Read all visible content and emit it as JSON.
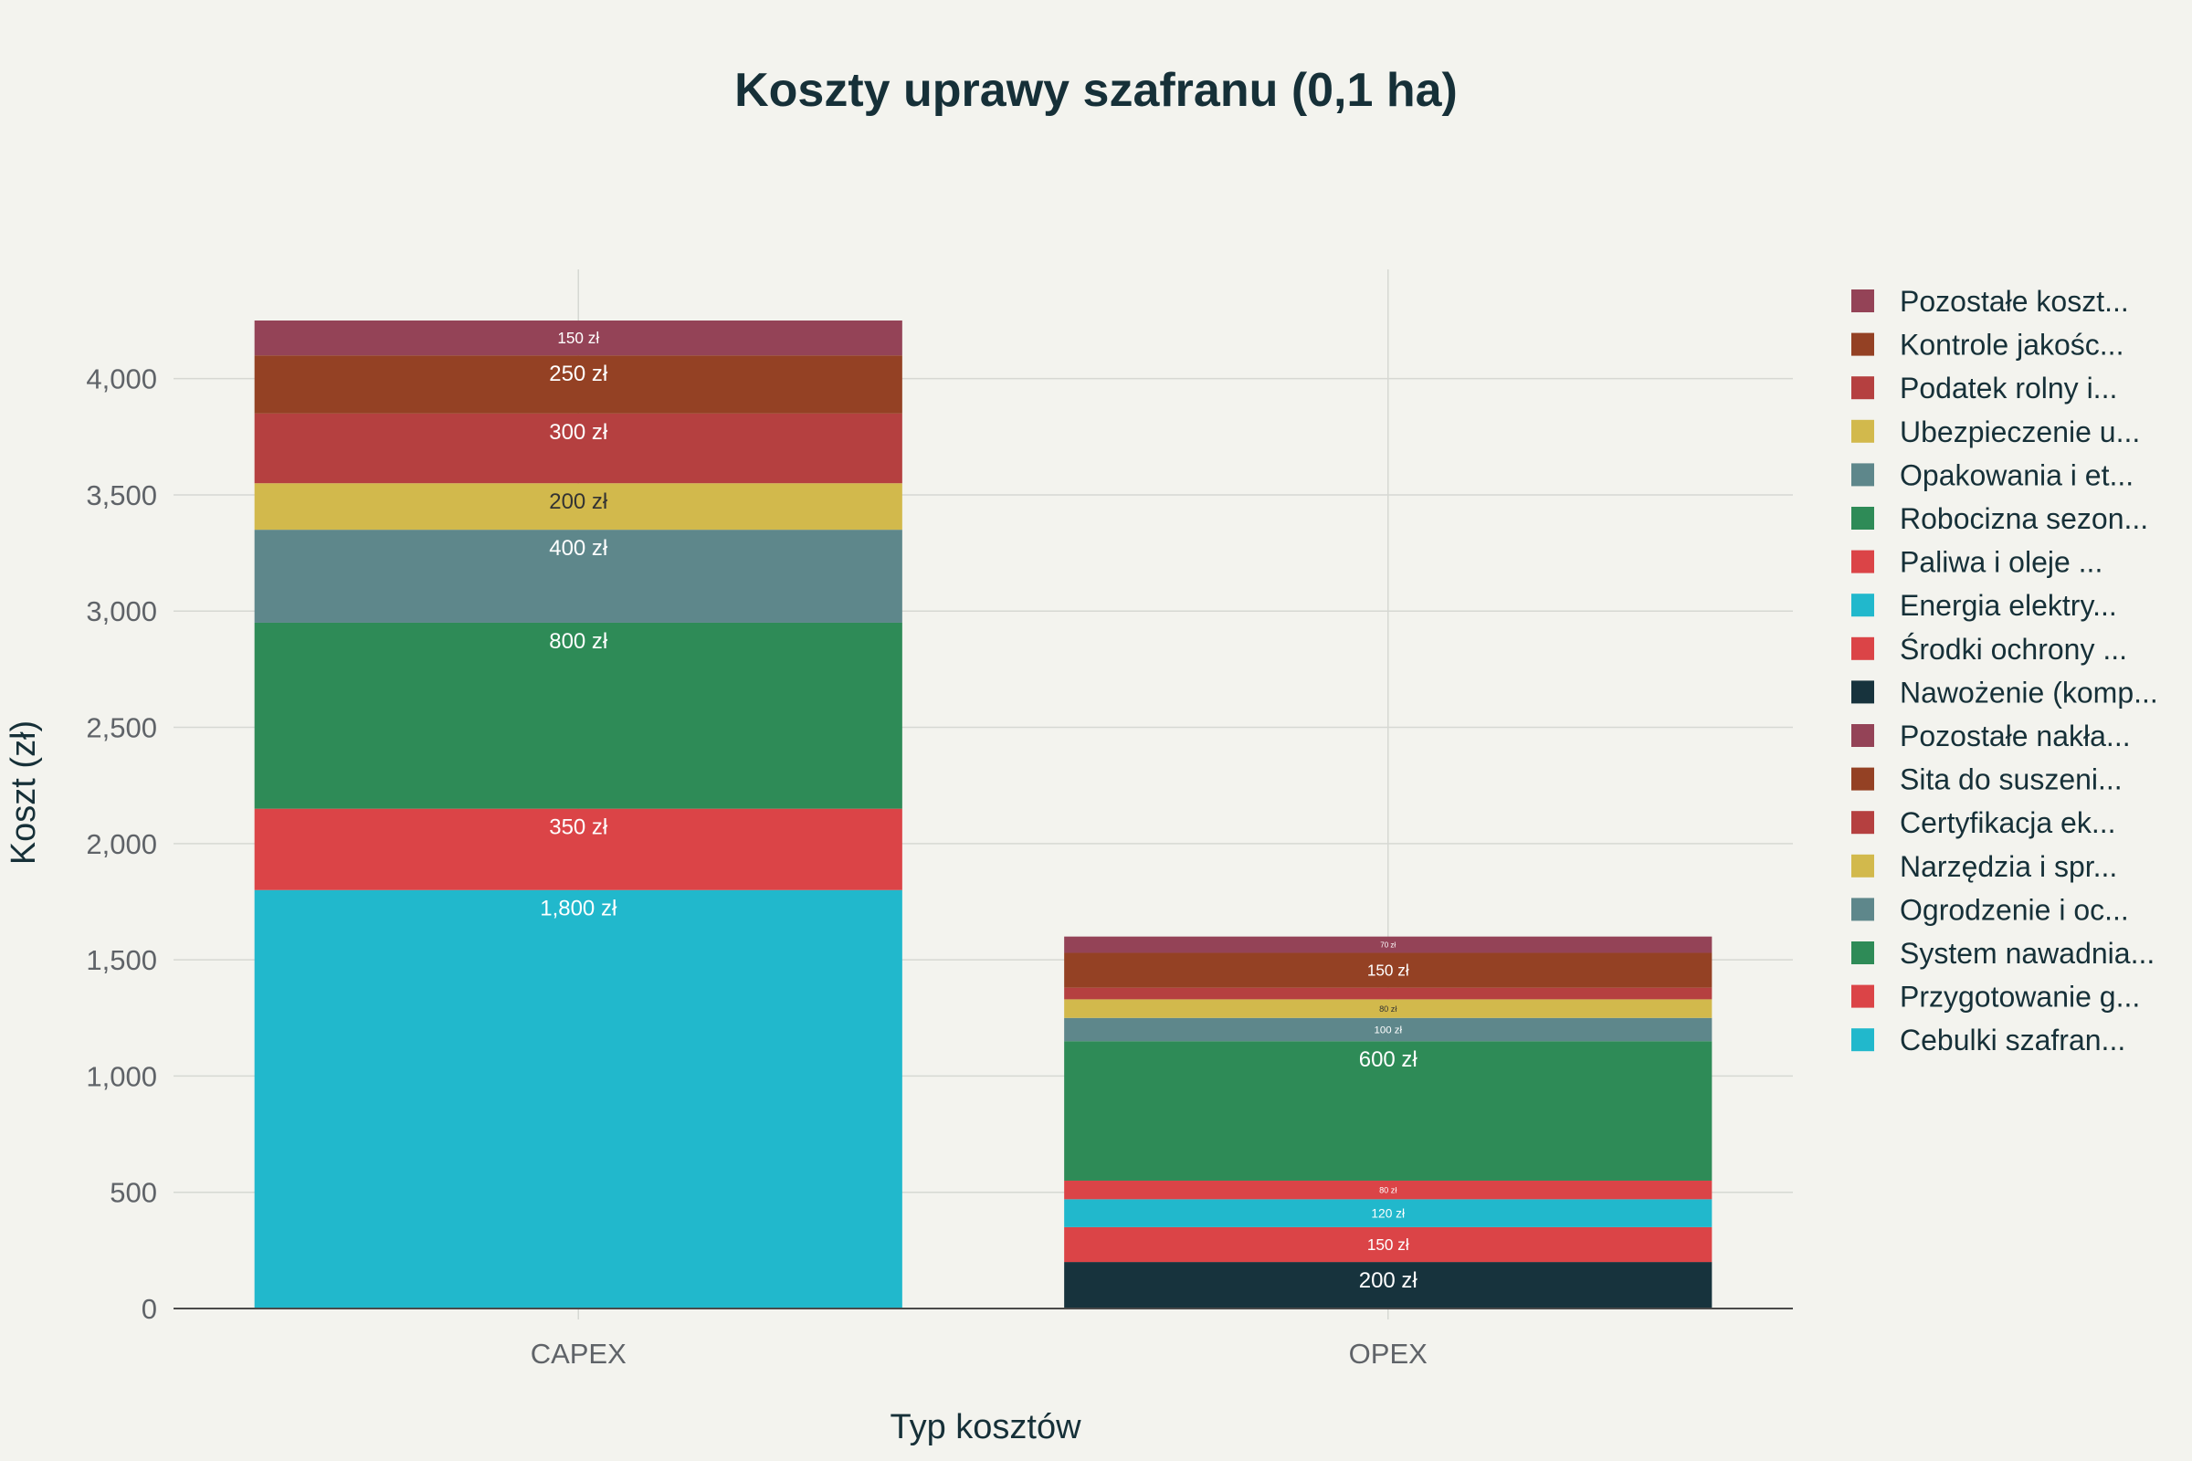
{
  "chart_data": {
    "type": "bar",
    "stacked": true,
    "title": "Koszty uprawy szafranu (0,1 ha)",
    "xlabel": "Typ kosztów",
    "ylabel": "Koszt (zł)",
    "categories": [
      "CAPEX",
      "OPEX"
    ],
    "ylim": [
      0,
      4470
    ],
    "yticks": [
      0,
      500,
      1000,
      1500,
      2000,
      2500,
      3000,
      3500,
      4000
    ],
    "ytick_labels": [
      "0",
      "500",
      "1,000",
      "1,500",
      "2,000",
      "2,500",
      "3,000",
      "3,500",
      "4,000"
    ],
    "grid": true,
    "legend_position": "right",
    "series": [
      {
        "name": "Cebulki szafran...",
        "color": "#21b8cc",
        "values": [
          1800,
          0
        ],
        "labels": [
          "1,800 zł",
          ""
        ]
      },
      {
        "name": "Przygotowanie g...",
        "color": "#db4447",
        "values": [
          350,
          0
        ],
        "labels": [
          "350 zł",
          ""
        ]
      },
      {
        "name": "System nawadnia...",
        "color": "#2e8b57",
        "values": [
          800,
          0
        ],
        "labels": [
          "800 zł",
          ""
        ]
      },
      {
        "name": "Ogrodzenie i oc...",
        "color": "#5e878b",
        "values": [
          400,
          0
        ],
        "labels": [
          "400 zł",
          ""
        ]
      },
      {
        "name": "Narzędzia i spr...",
        "color": "#d2b94c",
        "values": [
          200,
          0
        ],
        "labels": [
          "200 zł",
          ""
        ]
      },
      {
        "name": "Certyfikacja ek...",
        "color": "#b54040",
        "values": [
          300,
          0
        ],
        "labels": [
          "300 zł",
          ""
        ]
      },
      {
        "name": "Sita do suszeni...",
        "color": "#944124",
        "values": [
          250,
          0
        ],
        "labels": [
          "250 zł",
          ""
        ]
      },
      {
        "name": "Pozostałe nakła...",
        "color": "#944357",
        "values": [
          150,
          0
        ],
        "labels": [
          "150 zł",
          ""
        ]
      },
      {
        "name": "Nawożenie (komp...",
        "color": "#17333d",
        "values": [
          0,
          200
        ],
        "labels": [
          "",
          "200 zł"
        ]
      },
      {
        "name": "Środki ochrony ...",
        "color": "#db4447",
        "values": [
          0,
          150
        ],
        "labels": [
          "",
          "150 zł"
        ]
      },
      {
        "name": "Energia elektry...",
        "color": "#21b8cc",
        "values": [
          0,
          120
        ],
        "labels": [
          "",
          "120 zł"
        ]
      },
      {
        "name": "Paliwa i oleje ...",
        "color": "#db4447",
        "values": [
          0,
          80
        ],
        "labels": [
          "",
          "80 zł"
        ]
      },
      {
        "name": "Robocizna sezon...",
        "color": "#2e8b57",
        "values": [
          0,
          600
        ],
        "labels": [
          "",
          "600 zł"
        ]
      },
      {
        "name": "Opakowania i et...",
        "color": "#5e878b",
        "values": [
          0,
          100
        ],
        "labels": [
          "",
          "100 zł"
        ]
      },
      {
        "name": "Ubezpieczenie u...",
        "color": "#d2b94c",
        "values": [
          0,
          80
        ],
        "labels": [
          "",
          "80 zł"
        ]
      },
      {
        "name": "Podatek rolny i...",
        "color": "#b54040",
        "values": [
          0,
          50
        ],
        "labels": [
          "",
          ""
        ]
      },
      {
        "name": "Kontrole jakośc...",
        "color": "#944124",
        "values": [
          0,
          150
        ],
        "labels": [
          "",
          "150 zł"
        ]
      },
      {
        "name": "Pozostałe koszt...",
        "color": "#944357",
        "values": [
          0,
          70
        ],
        "labels": [
          "",
          "70 zł"
        ]
      }
    ]
  }
}
